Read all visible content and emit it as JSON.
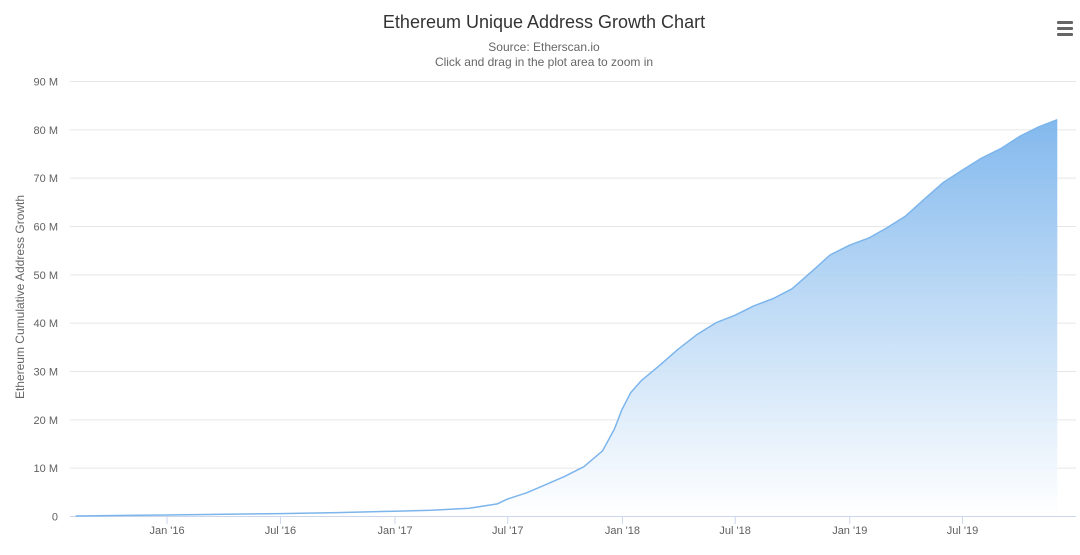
{
  "chart_data": {
    "type": "area",
    "title": "Ethereum Unique Address Growth Chart",
    "subtitle": [
      "Source: Etherscan.io",
      "Click and drag in the plot area to zoom in"
    ],
    "xlabel": "",
    "ylabel": "Ethereum Cumulative Address Growth",
    "ylim": [
      0,
      90000000
    ],
    "y_ticks": [
      0,
      10000000,
      20000000,
      30000000,
      40000000,
      50000000,
      60000000,
      70000000,
      80000000,
      90000000
    ],
    "y_tick_labels": [
      "0",
      "10 M",
      "20 M",
      "30 M",
      "40 M",
      "50 M",
      "60 M",
      "70 M",
      "80 M",
      "90 M"
    ],
    "xlim": [
      "2015-07-30",
      "2019-12-31"
    ],
    "x_ticks": [
      "2016-01-01",
      "2016-07-01",
      "2017-01-01",
      "2017-07-01",
      "2018-01-01",
      "2018-07-01",
      "2019-01-01",
      "2019-07-01"
    ],
    "x_tick_labels": [
      "Jan '16",
      "Jul '16",
      "Jan '17",
      "Jul '17",
      "Jan '18",
      "Jul '18",
      "Jan '19",
      "Jul '19"
    ],
    "grid": true,
    "legend": "none",
    "colors": {
      "line": "#7cb5ec",
      "fill_top": "#7cb5ec",
      "fill_bottom": "#ffffff",
      "grid": "#e6e6e6"
    },
    "series": [
      {
        "values": [
          [
            "2015-08-08",
            0
          ],
          [
            "2016-01-01",
            200000
          ],
          [
            "2016-07-01",
            500000
          ],
          [
            "2016-10-01",
            700000
          ],
          [
            "2017-01-01",
            1000000
          ],
          [
            "2017-03-01",
            1200000
          ],
          [
            "2017-05-01",
            1600000
          ],
          [
            "2017-06-15",
            2500000
          ],
          [
            "2017-07-01",
            3500000
          ],
          [
            "2017-08-01",
            4800000
          ],
          [
            "2017-09-01",
            6500000
          ],
          [
            "2017-10-01",
            8200000
          ],
          [
            "2017-11-01",
            10200000
          ],
          [
            "2017-12-01",
            13500000
          ],
          [
            "2017-12-20",
            18000000
          ],
          [
            "2018-01-01",
            22000000
          ],
          [
            "2018-01-15",
            25500000
          ],
          [
            "2018-02-01",
            28000000
          ],
          [
            "2018-03-01",
            31000000
          ],
          [
            "2018-04-01",
            34500000
          ],
          [
            "2018-05-01",
            37500000
          ],
          [
            "2018-06-01",
            40000000
          ],
          [
            "2018-07-01",
            41500000
          ],
          [
            "2018-08-01",
            43500000
          ],
          [
            "2018-09-01",
            45000000
          ],
          [
            "2018-10-01",
            47000000
          ],
          [
            "2018-11-01",
            50500000
          ],
          [
            "2018-12-01",
            54000000
          ],
          [
            "2019-01-01",
            56000000
          ],
          [
            "2019-02-01",
            57500000
          ],
          [
            "2019-03-01",
            59500000
          ],
          [
            "2019-04-01",
            62000000
          ],
          [
            "2019-05-01",
            65500000
          ],
          [
            "2019-06-01",
            69000000
          ],
          [
            "2019-07-01",
            71500000
          ],
          [
            "2019-08-01",
            74000000
          ],
          [
            "2019-09-01",
            76000000
          ],
          [
            "2019-10-01",
            78500000
          ],
          [
            "2019-11-01",
            80500000
          ],
          [
            "2019-12-01",
            82000000
          ]
        ]
      }
    ]
  },
  "toolbar": {
    "menu_icon": "hamburger-menu-icon"
  }
}
